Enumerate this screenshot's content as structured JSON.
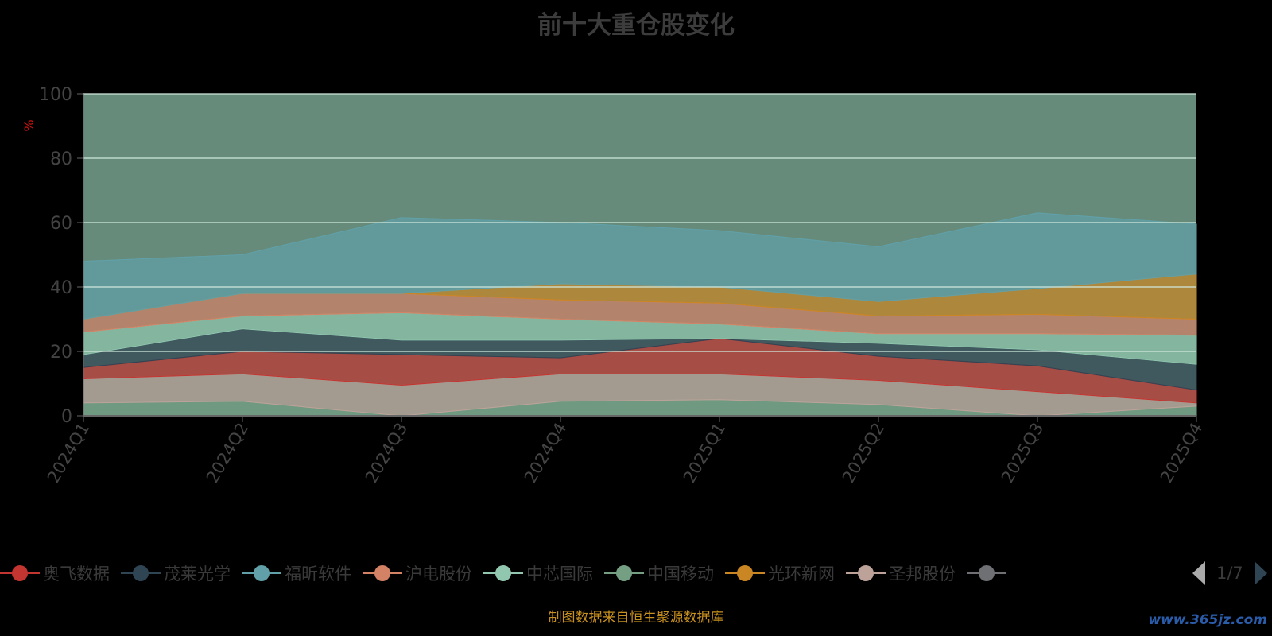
{
  "chart_data": {
    "type": "area",
    "stacked": true,
    "title": "前十大重仓股变化",
    "ylabel": "%",
    "ylim": [
      0,
      100
    ],
    "yticks": [
      "0",
      "20",
      "40",
      "60",
      "80",
      "100"
    ],
    "categories": [
      "2024Q1",
      "2024Q2",
      "2024Q3",
      "2024Q4",
      "2025Q1",
      "2025Q2",
      "2025Q3",
      "2025Q4"
    ],
    "series": [
      {
        "name": "中国移动",
        "color": "#749f83",
        "values": [
          4,
          4.5,
          0,
          4.5,
          5,
          3.5,
          0,
          3
        ]
      },
      {
        "name": "圣邦股份",
        "color": "#bda29a",
        "values": [
          7.5,
          8.5,
          9.5,
          8.5,
          8,
          7.5,
          7.5,
          1
        ]
      },
      {
        "name": "奥飞数据",
        "color": "#c23531",
        "values": [
          3.5,
          7,
          9.5,
          5,
          11,
          7.5,
          8,
          4
        ]
      },
      {
        "name": "茂莱光学",
        "color": "#2f4554",
        "values": [
          4,
          7,
          4.5,
          5.5,
          0,
          4,
          5,
          8
        ]
      },
      {
        "name": "中芯国际",
        "color": "#91c7ae",
        "values": [
          7,
          4,
          8.5,
          6.5,
          4.5,
          3,
          5,
          9
        ]
      },
      {
        "name": "沪电股份",
        "color": "#d48265",
        "values": [
          4,
          7,
          6,
          6,
          6.5,
          5.5,
          6,
          5
        ]
      },
      {
        "name": "光环新网",
        "color": "#ca8622",
        "values": [
          0,
          0,
          0,
          5,
          5,
          4.5,
          8,
          14
        ]
      },
      {
        "name": "福昕软件",
        "color": "#61a0a8",
        "values": [
          18,
          12,
          23.5,
          19,
          17.5,
          17,
          23.5,
          15.5
        ]
      }
    ],
    "legend": {
      "items": [
        "奥飞数据",
        "茂莱光学",
        "福昕软件",
        "沪电股份",
        "中芯国际",
        "中国移动",
        "光环新网",
        "圣邦股份"
      ],
      "extra_color": "#6e7074",
      "page": "1/7",
      "placement": "bottom"
    },
    "plot_fill_color": "#668b7a",
    "grid": true
  },
  "footer": "制图数据来自恒生聚源数据库",
  "watermark": "www.365jz.com"
}
